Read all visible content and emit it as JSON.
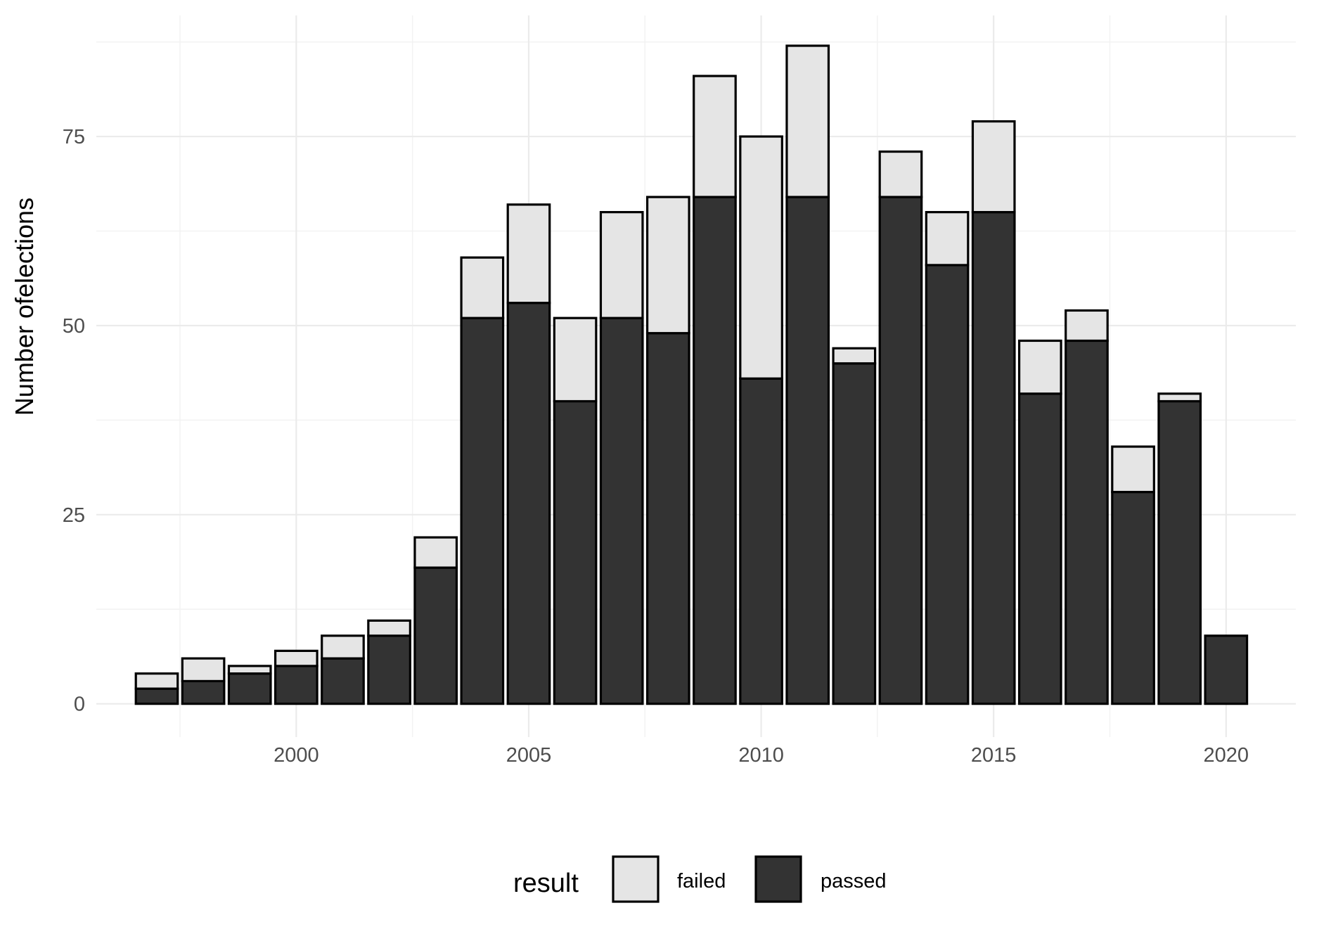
{
  "chart_data": {
    "type": "bar",
    "stacked": true,
    "title": "",
    "xlabel": "",
    "ylabel": "Number ofelections",
    "x": [
      1997,
      1998,
      1999,
      2000,
      2001,
      2002,
      2003,
      2004,
      2005,
      2006,
      2007,
      2008,
      2009,
      2010,
      2011,
      2012,
      2013,
      2014,
      2015,
      2016,
      2017,
      2018,
      2019,
      2020
    ],
    "series": [
      {
        "name": "passed",
        "color": "#333333",
        "values": [
          2,
          3,
          4,
          5,
          6,
          9,
          18,
          51,
          53,
          40,
          51,
          49,
          67,
          43,
          67,
          45,
          67,
          58,
          65,
          41,
          48,
          28,
          40,
          9
        ]
      },
      {
        "name": "failed",
        "color": "#e5e5e5",
        "values": [
          2,
          3,
          1,
          2,
          3,
          2,
          4,
          8,
          13,
          11,
          14,
          18,
          16,
          32,
          20,
          2,
          6,
          7,
          12,
          7,
          4,
          6,
          1,
          0
        ]
      }
    ],
    "xticks": [
      2000,
      2005,
      2010,
      2015,
      2020
    ],
    "yticks": [
      0,
      25,
      50,
      75
    ],
    "xlim": [
      1995.7,
      2021.5
    ],
    "ylim": [
      -4.4,
      91
    ],
    "grid": true,
    "legend": {
      "title": "result",
      "position": "bottom",
      "entries": [
        {
          "label": "failed",
          "color": "#e5e5e5"
        },
        {
          "label": "passed",
          "color": "#333333"
        }
      ]
    }
  }
}
